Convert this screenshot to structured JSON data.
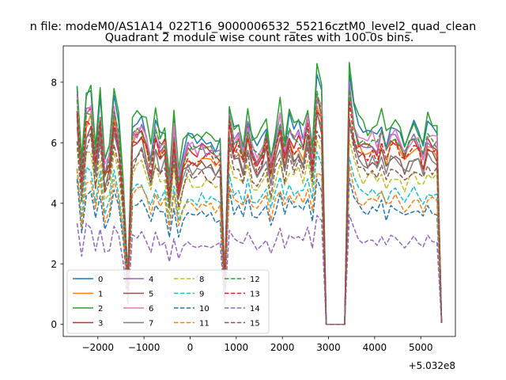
{
  "chart_data": {
    "type": "line",
    "suptitle": "n file: modeM0/AS1A14_022T16_9000006532_55216cztM0_level2_quad_clean",
    "title": "Quadrant 2 module wise count rates with 100.0s bins.",
    "xlabel": "",
    "ylabel": "",
    "x_offset_label": "+5.032e8",
    "xlim": [
      -2750,
      5750
    ],
    "ylim": [
      -0.4,
      9.2
    ],
    "x_ticks": [
      -2000,
      -1000,
      0,
      1000,
      2000,
      3000,
      4000,
      5000
    ],
    "x_tick_labels": [
      "−2000",
      "−1000",
      "0",
      "1000",
      "2000",
      "3000",
      "4000",
      "5000"
    ],
    "y_ticks": [
      0,
      2,
      4,
      6,
      8
    ],
    "y_tick_labels": [
      "0",
      "2",
      "4",
      "6",
      "8"
    ],
    "x_start": -2450,
    "x_step": 100,
    "gap_start_index": 54,
    "gap_end_index": 58,
    "legend_position": "lower-left",
    "series": [
      {
        "name": "0",
        "color": "#1f77b4",
        "style": "solid",
        "base": 6.3
      },
      {
        "name": "1",
        "color": "#ff7f0e",
        "style": "solid",
        "base": 5.7
      },
      {
        "name": "2",
        "color": "#2ca02c",
        "style": "solid",
        "base": 6.5
      },
      {
        "name": "3",
        "color": "#d62728",
        "style": "solid",
        "base": 5.9
      },
      {
        "name": "4",
        "color": "#9467bd",
        "style": "solid",
        "base": 5.95
      },
      {
        "name": "5",
        "color": "#8c564b",
        "style": "solid",
        "base": 5.45
      },
      {
        "name": "6",
        "color": "#e377c2",
        "style": "solid",
        "base": 6.05
      },
      {
        "name": "7",
        "color": "#7f7f7f",
        "style": "solid",
        "base": 5.3
      },
      {
        "name": "8",
        "color": "#bcbd22",
        "style": "dashed",
        "base": 4.8
      },
      {
        "name": "9",
        "color": "#17becf",
        "style": "dashed",
        "base": 4.3
      },
      {
        "name": "10",
        "color": "#1f77b4",
        "style": "dashed",
        "base": 3.75
      },
      {
        "name": "11",
        "color": "#ff7f0e",
        "style": "dashed",
        "base": 4.05
      },
      {
        "name": "12",
        "color": "#2ca02c",
        "style": "dashed",
        "base": 5.95
      },
      {
        "name": "13",
        "color": "#d62728",
        "style": "dashed",
        "base": 5.65
      },
      {
        "name": "14",
        "color": "#9467bd",
        "style": "dashed",
        "base": 2.75
      },
      {
        "name": "15",
        "color": "#8c564b",
        "style": "dashed",
        "base": 5.05
      }
    ]
  }
}
